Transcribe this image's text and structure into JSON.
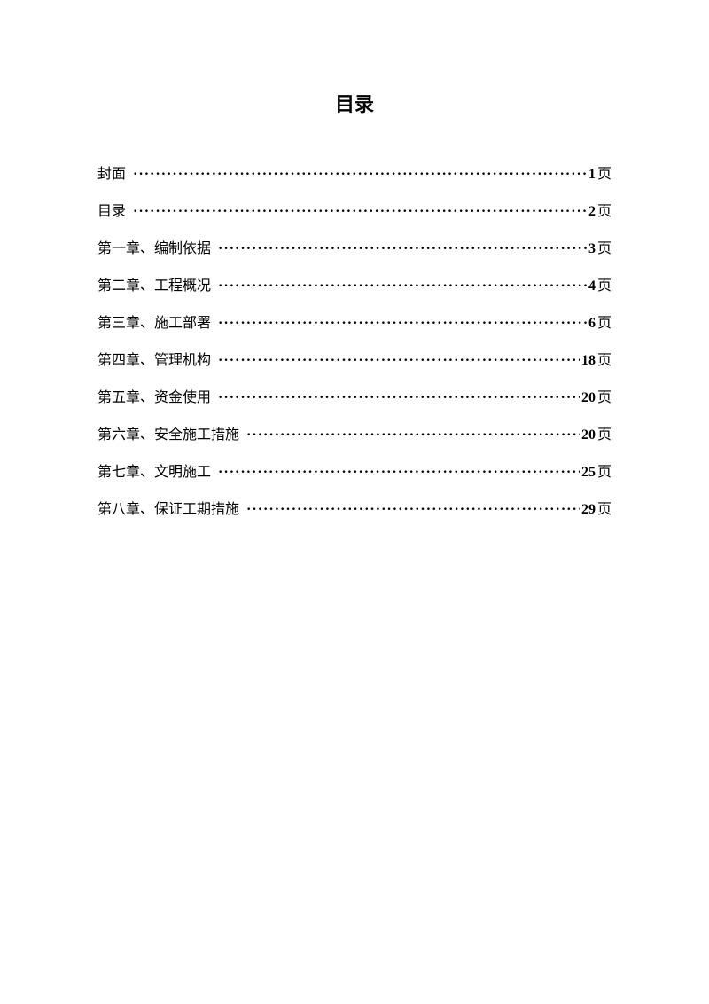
{
  "title": "目录",
  "page_suffix": "页",
  "entries": [
    {
      "label": "封面",
      "page": "1"
    },
    {
      "label": "目录",
      "page": "2"
    },
    {
      "label": "第一章、编制依据",
      "page": "3"
    },
    {
      "label": "第二章、工程概况",
      "page": "4"
    },
    {
      "label": "第三章、施工部署",
      "page": "6"
    },
    {
      "label": "第四章、管理机构",
      "page": "18"
    },
    {
      "label": "第五章、资金使用",
      "page": "20"
    },
    {
      "label": "第六章、安全施工措施",
      "page": "20"
    },
    {
      "label": "第七章、文明施工",
      "page": "25"
    },
    {
      "label": "第八章、保证工期措施",
      "page": "29"
    }
  ],
  "styles": {
    "background_color": "#ffffff",
    "text_color": "#000000",
    "title_fontsize": 22,
    "entry_fontsize": 16,
    "line_spacing": 18
  }
}
